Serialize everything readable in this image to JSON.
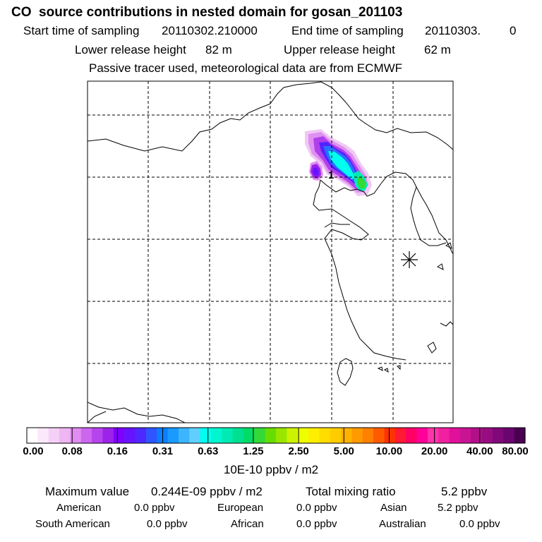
{
  "header": {
    "title": "CO  source contributions in nested domain for gosan_201103",
    "start_label": "Start time of sampling",
    "start_value": "20110302.210000",
    "end_label": "End time of sampling",
    "end_value": "20110303.",
    "end_extra": "0",
    "lower_label": "Lower release height",
    "lower_value": "82 m",
    "upper_label": "Upper release height",
    "upper_value": "62 m",
    "note": "Passive tracer used, meteorological data are from ECMWF"
  },
  "map": {
    "release_marker_label": "1"
  },
  "colorbar": {
    "colors": [
      "#ffffff",
      "#fbe9fb",
      "#f5d0f6",
      "#eeb6f2",
      "#e08cf0",
      "#cc66ee",
      "#b544ec",
      "#9d22ea",
      "#8000ff",
      "#6614ff",
      "#4d29ff",
      "#2e55ff",
      "#0a7fff",
      "#1a99ff",
      "#3db4ff",
      "#5fcfff",
      "#00ffee",
      "#00f5d0",
      "#00ebb3",
      "#00e090",
      "#00dc66",
      "#33d936",
      "#66dd00",
      "#99e500",
      "#ccf200",
      "#eeff00",
      "#ffee00",
      "#ffdd00",
      "#ffcc00",
      "#ffb300",
      "#ff9900",
      "#ff7f00",
      "#ff5a00",
      "#ff3300",
      "#ff1a33",
      "#ff0066",
      "#ff0099",
      "#ff33aa",
      "#f020a0",
      "#e0109a",
      "#c81493",
      "#b0108a",
      "#980c82",
      "#800878",
      "#6a046e",
      "#4a0050"
    ],
    "ticks": [
      "0.00",
      "0.08",
      "0.16",
      "0.31",
      "0.63",
      "1.25",
      "2.50",
      "5.00",
      "10.00",
      "20.00",
      "40.00",
      "80.00"
    ],
    "units": "10E-10 ppbv / m2"
  },
  "summary": {
    "max_label": "Maximum value",
    "max_value": "0.244E-09 ppbv / m2",
    "total_label": "Total mixing ratio",
    "total_value": "5.2 ppbv",
    "regions": [
      {
        "name": "American",
        "value": "0.0 ppbv"
      },
      {
        "name": "European",
        "value": "0.0 ppbv"
      },
      {
        "name": "Asian",
        "value": "5.2 ppbv"
      },
      {
        "name": "South American",
        "value": "0.0 ppbv"
      },
      {
        "name": "African",
        "value": "0.0 ppbv"
      },
      {
        "name": "Australian",
        "value": "0.0 ppbv"
      }
    ]
  }
}
